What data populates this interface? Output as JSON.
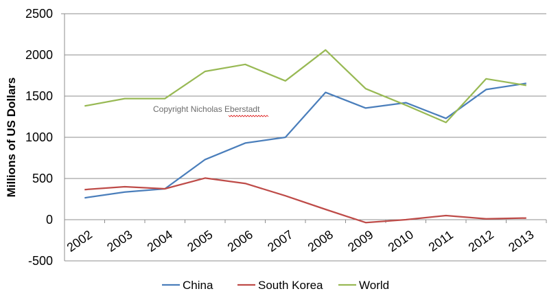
{
  "chart_data": {
    "type": "line",
    "title": "",
    "xlabel": "",
    "ylabel": "Millions of US Dollars",
    "ylim": [
      -500,
      2500
    ],
    "yticks": [
      -500,
      0,
      500,
      1000,
      1500,
      2000,
      2500
    ],
    "grid": true,
    "legend_position": "bottom",
    "categories": [
      "2002",
      "2003",
      "2004",
      "2005",
      "2006",
      "2007",
      "2008",
      "2009",
      "2010",
      "2011",
      "2012",
      "2013"
    ],
    "series": [
      {
        "name": "China",
        "color": "#4A7EBB",
        "values": [
          265,
          335,
          375,
          730,
          930,
          1000,
          1545,
          1355,
          1420,
          1230,
          1580,
          1655
        ]
      },
      {
        "name": "South Korea",
        "color": "#BE4B48",
        "values": [
          365,
          400,
          375,
          505,
          440,
          290,
          125,
          -35,
          0,
          50,
          10,
          20
        ]
      },
      {
        "name": "World",
        "color": "#98B954",
        "values": [
          1380,
          1470,
          1470,
          1800,
          1885,
          1685,
          2060,
          1590,
          1390,
          1180,
          1710,
          1630
        ]
      }
    ],
    "annotation": "Copyright  Nicholas  Eberstadt"
  }
}
